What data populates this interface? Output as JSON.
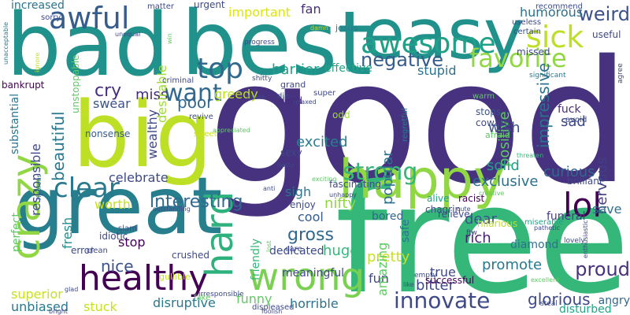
{
  "words": [
    {
      "text": "good",
      "color": "#46327e"
    },
    {
      "text": "free",
      "color": "#35b779"
    },
    {
      "text": "bad",
      "color": "#21918c"
    },
    {
      "text": "best",
      "color": "#21918c"
    },
    {
      "text": "great",
      "color": "#277f8e"
    },
    {
      "text": "big",
      "color": "#bddf26"
    },
    {
      "text": "easy",
      "color": "#21918c"
    },
    {
      "text": "happy",
      "color": "#90d743"
    },
    {
      "text": "healthy",
      "color": "#440154"
    },
    {
      "text": "wrong",
      "color": "#7ad151"
    },
    {
      "text": "awesome",
      "color": "#1fa187"
    },
    {
      "text": "crazy",
      "color": "#90d743"
    },
    {
      "text": "hard",
      "color": "#2db27d"
    },
    {
      "text": "lol",
      "color": "#440154"
    },
    {
      "text": "sick",
      "color": "#bddf26"
    },
    {
      "text": "awful",
      "color": "#365c8d"
    },
    {
      "text": "top",
      "color": "#31688e"
    },
    {
      "text": "favorite",
      "color": "#90d743"
    },
    {
      "text": "negative",
      "color": "#365c8d"
    },
    {
      "text": "clear",
      "color": "#2a788e"
    },
    {
      "text": "strong",
      "color": "#35b779"
    },
    {
      "text": "innovate",
      "color": "#3e4989"
    },
    {
      "text": "want",
      "color": "#31688e"
    },
    {
      "text": "interesting",
      "color": "#31688e"
    },
    {
      "text": "weird",
      "color": "#3b528b"
    },
    {
      "text": "proud",
      "color": "#46327e"
    },
    {
      "text": "gross",
      "color": "#31688e"
    },
    {
      "text": "impressive",
      "color": "#2c728e"
    },
    {
      "text": "cry",
      "color": "#472d7b"
    },
    {
      "text": "poor",
      "color": "#31688e"
    },
    {
      "text": "beautiful",
      "color": "#2a788e"
    },
    {
      "text": "excited",
      "color": "#277f8e"
    },
    {
      "text": "glorious",
      "color": "#3e4989"
    },
    {
      "text": "nice",
      "color": "#3b528b"
    },
    {
      "text": "important",
      "color": "#dde318"
    },
    {
      "text": "barrier",
      "color": "#1f9e89"
    },
    {
      "text": "greedy",
      "color": "#bddf26"
    },
    {
      "text": "miss",
      "color": "#472d7b"
    },
    {
      "text": "swear",
      "color": "#3b528b"
    },
    {
      "text": "responsible",
      "color": "#3e4989"
    },
    {
      "text": "desirable",
      "color": "#a0da39"
    },
    {
      "text": "stupid",
      "color": "#2c728e"
    },
    {
      "text": "humorous",
      "color": "#2c728e"
    },
    {
      "text": "fan",
      "color": "#472d7b"
    },
    {
      "text": "increased",
      "color": "#2c728e"
    },
    {
      "text": "nervous",
      "color": "#433e85"
    },
    {
      "text": "sad",
      "color": "#3e4989"
    },
    {
      "text": "wish",
      "color": "#3b528b"
    },
    {
      "text": "positive",
      "color": "#5ec962"
    },
    {
      "text": "popular",
      "color": "#2c728e"
    },
    {
      "text": "curious",
      "color": "#31688e"
    },
    {
      "text": "solid",
      "color": "#1f9e89"
    },
    {
      "text": "exclusive",
      "color": "#2c728e"
    },
    {
      "text": "celebrate",
      "color": "#3e4989"
    },
    {
      "text": "wealthy",
      "color": "#3e4989"
    },
    {
      "text": "sigh",
      "color": "#2a788e"
    },
    {
      "text": "nifty",
      "color": "#90d743"
    },
    {
      "text": "cool",
      "color": "#365c8d"
    },
    {
      "text": "stop",
      "color": "#440154"
    },
    {
      "text": "fresh",
      "color": "#228c8d"
    },
    {
      "text": "worth",
      "color": "#c8e020"
    },
    {
      "text": "save",
      "color": "#2c728e"
    },
    {
      "text": "huge",
      "color": "#35b779"
    },
    {
      "text": "promote",
      "color": "#2a788e"
    },
    {
      "text": "pretty",
      "color": "#c8e020"
    },
    {
      "text": "rich",
      "color": "#481f70"
    },
    {
      "text": "dear",
      "color": "#3b528b"
    },
    {
      "text": "bitter",
      "color": "#3e4989"
    },
    {
      "text": "true",
      "color": "#3e4989"
    },
    {
      "text": "fun",
      "color": "#3e4989"
    },
    {
      "text": "amazing",
      "color": "#5ec962"
    },
    {
      "text": "funny",
      "color": "#5ec962"
    },
    {
      "text": "horrible",
      "color": "#2c728e"
    },
    {
      "text": "disruptive",
      "color": "#2a788e"
    },
    {
      "text": "superior",
      "color": "#c8e020"
    },
    {
      "text": "unbiased",
      "color": "#2a788e"
    },
    {
      "text": "stuck",
      "color": "#c8e020"
    },
    {
      "text": "perfect",
      "color": "#5ec962"
    },
    {
      "text": "substantial",
      "color": "#2a788e"
    },
    {
      "text": "dedicated",
      "color": "#3e4989"
    },
    {
      "text": "friendly",
      "color": "#35b779"
    },
    {
      "text": "safe",
      "color": "#2c728e"
    },
    {
      "text": "bored",
      "color": "#31688e"
    },
    {
      "text": "funeral",
      "color": "#433e85"
    },
    {
      "text": "diamond",
      "color": "#2c728e"
    },
    {
      "text": "disturbed",
      "color": "#20a486"
    },
    {
      "text": "angry",
      "color": "#31688e"
    },
    {
      "text": "effective",
      "color": "#20a486"
    },
    {
      "text": "crushed",
      "color": "#3e4989"
    },
    {
      "text": "idiotic",
      "color": "#3e4989"
    },
    {
      "text": "error",
      "color": "#3e4989"
    },
    {
      "text": "clean",
      "color": "#3e4989"
    },
    {
      "text": "successful",
      "color": "#440154"
    },
    {
      "text": "bankrupt",
      "color": "#440154"
    },
    {
      "text": "unstoppable",
      "color": "#5ec962"
    },
    {
      "text": "nonsense",
      "color": "#365c8d"
    },
    {
      "text": "dead",
      "color": "#472d7b"
    },
    {
      "text": "odd",
      "color": "#a0da39"
    },
    {
      "text": "regretful",
      "color": "#2a788e"
    },
    {
      "text": "stops",
      "color": "#3b528b"
    },
    {
      "text": "coward",
      "color": "#3e4989"
    },
    {
      "text": "afraid",
      "color": "#5ec962"
    },
    {
      "text": "chagrin",
      "color": "#3e4989"
    },
    {
      "text": "brilliant",
      "color": "#3e4989"
    },
    {
      "text": "fascinating",
      "color": "#3e4989"
    },
    {
      "text": "alive",
      "color": "#1fa187"
    },
    {
      "text": "racist",
      "color": "#440154"
    },
    {
      "text": "enjoy",
      "color": "#3e4989"
    },
    {
      "text": "relieve",
      "color": "#3e4989"
    },
    {
      "text": "hilarious",
      "color": "#bddf26"
    },
    {
      "text": "miserable",
      "color": "#20a486"
    },
    {
      "text": "meaningful",
      "color": "#3e4989"
    },
    {
      "text": "gullible",
      "color": "#c8e020"
    },
    {
      "text": "sexy",
      "color": "#3e4989"
    },
    {
      "text": "slam",
      "color": "#3b528b"
    },
    {
      "text": "revive",
      "color": "#3e4989"
    },
    {
      "text": "sweet",
      "color": "#c8e020"
    },
    {
      "text": "grand",
      "color": "#3e4989"
    },
    {
      "text": "super",
      "color": "#3e4989"
    },
    {
      "text": "die",
      "color": "#3e4989"
    },
    {
      "text": "relaxed",
      "color": "#3e4989"
    },
    {
      "text": "warm",
      "color": "#5ec962"
    },
    {
      "text": "fuck",
      "color": "#472d7b"
    },
    {
      "text": "avoid",
      "color": "#3e4989"
    },
    {
      "text": "useful",
      "color": "#3e4989"
    },
    {
      "text": "recommend",
      "color": "#3e4989"
    },
    {
      "text": "missed",
      "color": "#3e4989"
    },
    {
      "text": "certain",
      "color": "#3e4989"
    },
    {
      "text": "jesus",
      "color": "#2a788e"
    },
    {
      "text": "matter",
      "color": "#3e4989"
    },
    {
      "text": "urgent",
      "color": "#3e4989"
    },
    {
      "text": "sorry",
      "color": "#3e4989"
    },
    {
      "text": "unequal",
      "color": "#3e4989"
    },
    {
      "text": "ignore",
      "color": "#c8e020"
    },
    {
      "text": "unacceptable",
      "color": "#2a788e"
    },
    {
      "text": "progress",
      "color": "#3e4989"
    },
    {
      "text": "shitty",
      "color": "#3e4989"
    },
    {
      "text": "criminal",
      "color": "#3e4989"
    },
    {
      "text": "god",
      "color": "#c8e020"
    },
    {
      "text": "anti",
      "color": "#3e4989"
    },
    {
      "text": "nasty",
      "color": "#3e4989"
    },
    {
      "text": "rigorous",
      "color": "#2a788e"
    },
    {
      "text": "outstanding",
      "color": "#3e4989"
    },
    {
      "text": "unhappy",
      "color": "#3e4989"
    },
    {
      "text": "exciting",
      "color": "#5ec962"
    },
    {
      "text": "creative",
      "color": "#5ec962"
    },
    {
      "text": "threaten",
      "color": "#35b779"
    },
    {
      "text": "pathetic",
      "color": "#3e4989"
    },
    {
      "text": "cute",
      "color": "#3e4989"
    },
    {
      "text": "ftw",
      "color": "#3e4989"
    },
    {
      "text": "lovely",
      "color": "#3e4989"
    },
    {
      "text": "excellent",
      "color": "#5ec962"
    },
    {
      "text": "enthusiastic",
      "color": "#3e4989"
    },
    {
      "text": "lost",
      "color": "#5ec962"
    },
    {
      "text": "care",
      "color": "#3e4989"
    },
    {
      "text": "empty",
      "color": "#3e4989"
    },
    {
      "text": "like",
      "color": "#3e4989"
    },
    {
      "text": "steal",
      "color": "#3e4989"
    },
    {
      "text": "displeased",
      "color": "#3e4989"
    },
    {
      "text": "foolish",
      "color": "#3e4989"
    },
    {
      "text": "irresponsible",
      "color": "#3e4989"
    },
    {
      "text": "fake",
      "color": "#5ec962"
    },
    {
      "text": "glad",
      "color": "#3e4989"
    },
    {
      "text": "bright",
      "color": "#3e4989"
    },
    {
      "text": "dumb",
      "color": "#3e4989"
    },
    {
      "text": "appreciated",
      "color": "#5ec962"
    },
    {
      "text": "useless",
      "color": "#3e4989"
    },
    {
      "text": "significant",
      "color": "#2a788e"
    },
    {
      "text": "agree",
      "color": "#3e4989"
    },
    {
      "text": "win",
      "color": "#5ec962"
    },
    {
      "text": "damn",
      "color": "#bddf26"
    }
  ]
}
